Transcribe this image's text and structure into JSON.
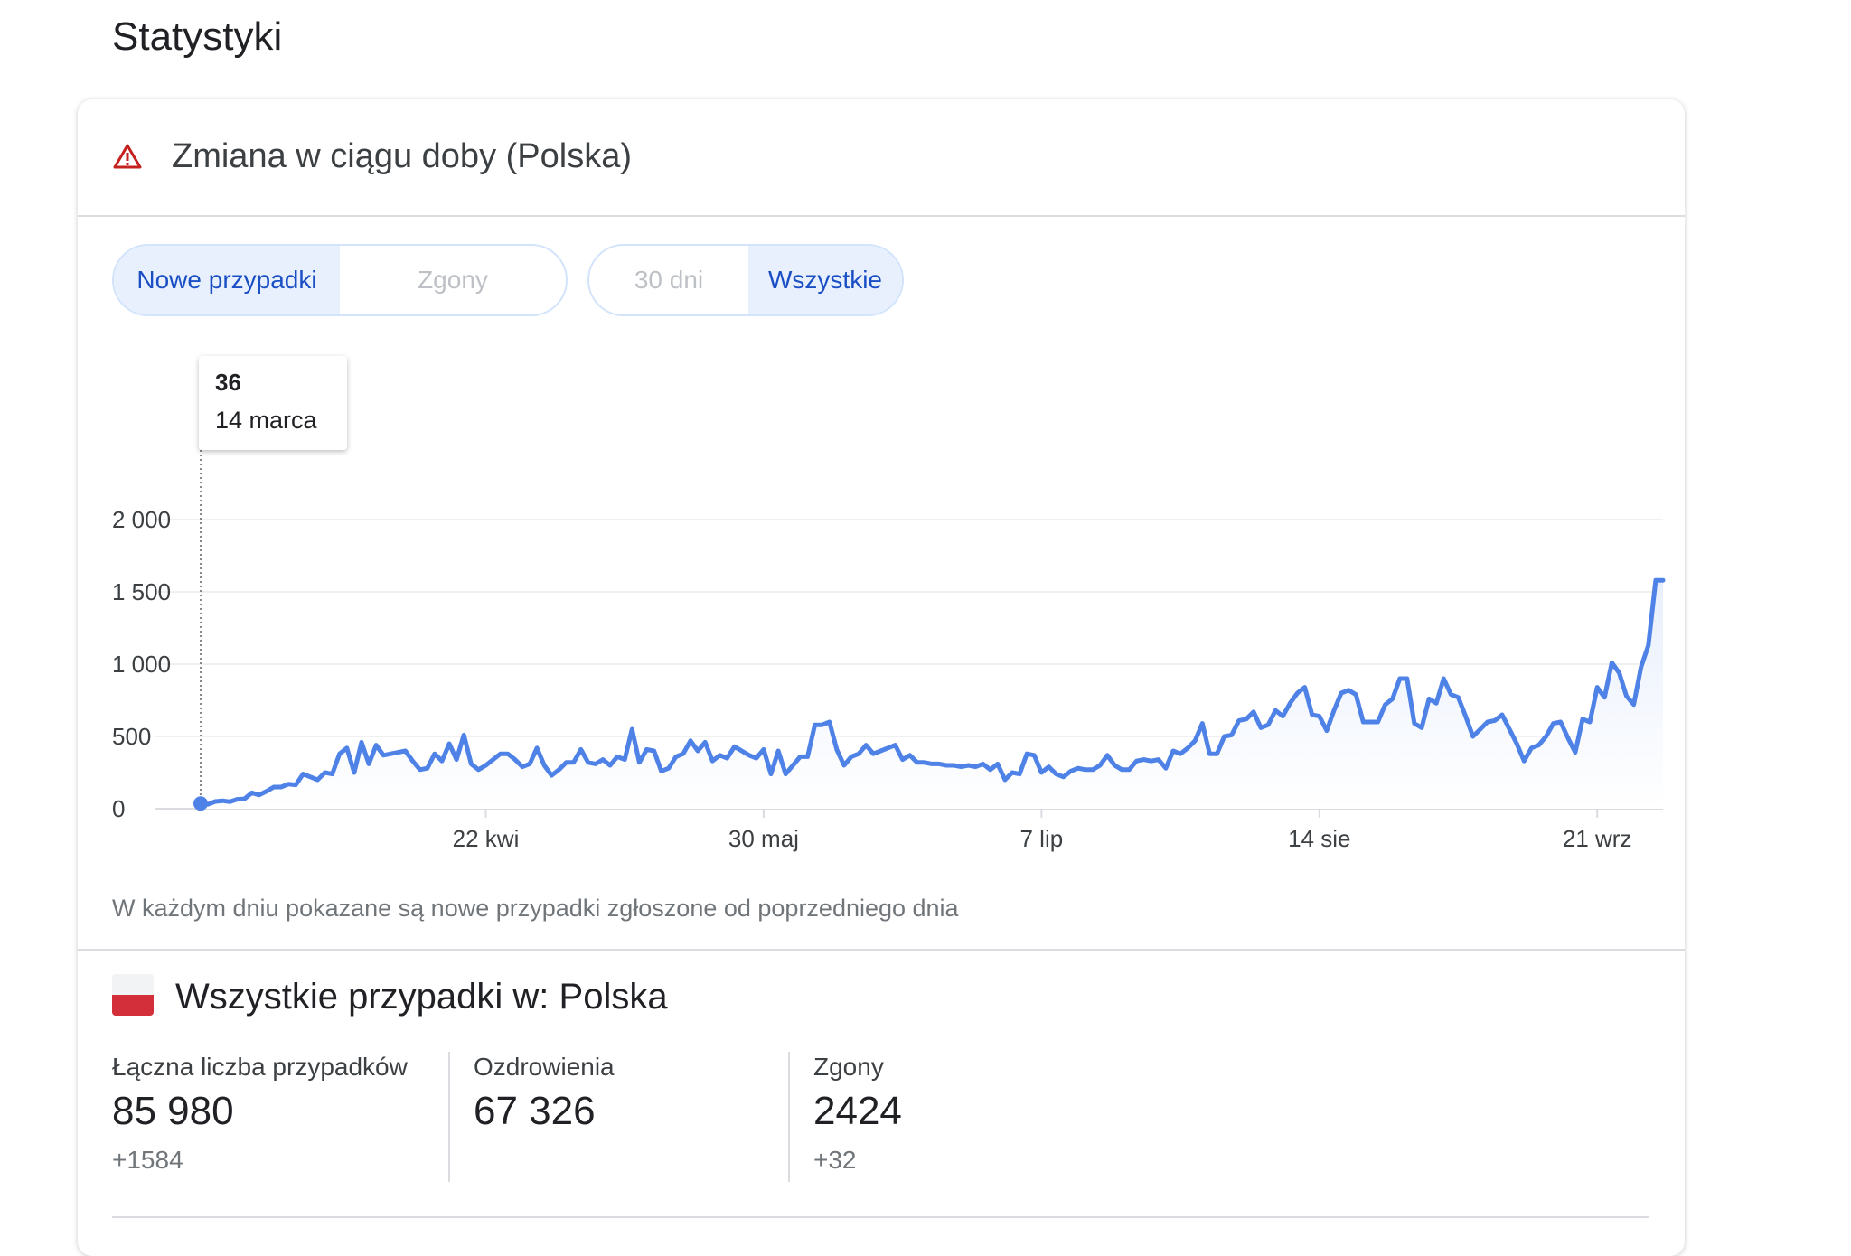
{
  "page": {
    "title": "Statystyki"
  },
  "card": {
    "title": "Zmiana w ciągu doby (Polska)",
    "warning_icon": "warning-triangle-icon"
  },
  "toggles": {
    "metric": [
      {
        "label": "Nowe przypadki",
        "active": true
      },
      {
        "label": "Zgony",
        "active": false
      }
    ],
    "range": [
      {
        "label": "30 dni",
        "active": false
      },
      {
        "label": "Wszystkie",
        "active": true
      }
    ]
  },
  "tooltip": {
    "value": "36",
    "date": "14 marca"
  },
  "footnote": "W każdym dniu pokazane są nowe przypadki zgłoszone od poprzedniego dnia",
  "totals": {
    "title": "Wszystkie przypadki w: Polska",
    "flag_icon": "poland-flag-icon",
    "stats": [
      {
        "label": "Łączna liczba przypadków",
        "value": "85 980",
        "delta": "+1584"
      },
      {
        "label": "Ozdrowienia",
        "value": "67 326",
        "delta": ""
      },
      {
        "label": "Zgony",
        "value": "2424",
        "delta": "+32"
      }
    ]
  },
  "colors": {
    "line": "#4f82e6",
    "area_top": "#eef3fd",
    "active_toggle_bg": "#e8f0fe",
    "active_toggle_text": "#1a4fc4",
    "warning": "#c5221f",
    "flag_red": "#d32f3a"
  },
  "chart_data": {
    "type": "area",
    "y_ticks": [
      "2 000",
      "1 500",
      "1 000",
      "500",
      "0"
    ],
    "y_tick_values": [
      2000,
      1500,
      1000,
      500,
      0
    ],
    "ylim": [
      0,
      2000
    ],
    "x_tick_labels": [
      "22 kwi",
      "30 maj",
      "7 lip",
      "14 sie",
      "21 wrz"
    ],
    "x_tick_index": [
      39,
      77,
      115,
      153,
      191
    ],
    "grid": true,
    "highlight_index": 0,
    "series": [
      {
        "values": [
          36,
          30,
          50,
          55,
          48,
          65,
          68,
          110,
          95,
          120,
          150,
          150,
          170,
          165,
          240,
          220,
          200,
          250,
          240,
          380,
          420,
          250,
          460,
          310,
          440,
          370,
          380,
          390,
          400,
          330,
          270,
          280,
          380,
          330,
          450,
          340,
          510,
          310,
          270,
          300,
          340,
          380,
          380,
          340,
          290,
          310,
          420,
          300,
          230,
          270,
          320,
          320,
          410,
          320,
          310,
          340,
          300,
          360,
          340,
          550,
          320,
          410,
          400,
          260,
          280,
          360,
          380,
          470,
          400,
          460,
          330,
          370,
          350,
          430,
          400,
          370,
          350,
          410,
          240,
          400,
          240,
          300,
          360,
          360,
          580,
          580,
          600,
          410,
          300,
          360,
          380,
          440,
          380,
          400,
          420,
          440,
          340,
          370,
          320,
          320,
          310,
          310,
          300,
          300,
          290,
          300,
          290,
          310,
          270,
          310,
          200,
          250,
          240,
          380,
          370,
          250,
          290,
          240,
          220,
          260,
          280,
          270,
          270,
          300,
          370,
          300,
          270,
          270,
          330,
          340,
          330,
          340,
          280,
          400,
          380,
          420,
          470,
          590,
          380,
          380,
          500,
          510,
          610,
          620,
          670,
          560,
          580,
          680,
          640,
          730,
          800,
          840,
          650,
          640,
          540,
          680,
          800,
          820,
          790,
          600,
          600,
          600,
          720,
          760,
          900,
          900,
          590,
          560,
          760,
          730,
          900,
          790,
          770,
          640,
          500,
          550,
          600,
          610,
          650,
          550,
          450,
          330,
          420,
          440,
          500,
          590,
          600,
          490,
          390,
          620,
          600,
          840,
          770,
          1010,
          940,
          780,
          720,
          980,
          1130,
          1580,
          1580
        ]
      }
    ]
  }
}
